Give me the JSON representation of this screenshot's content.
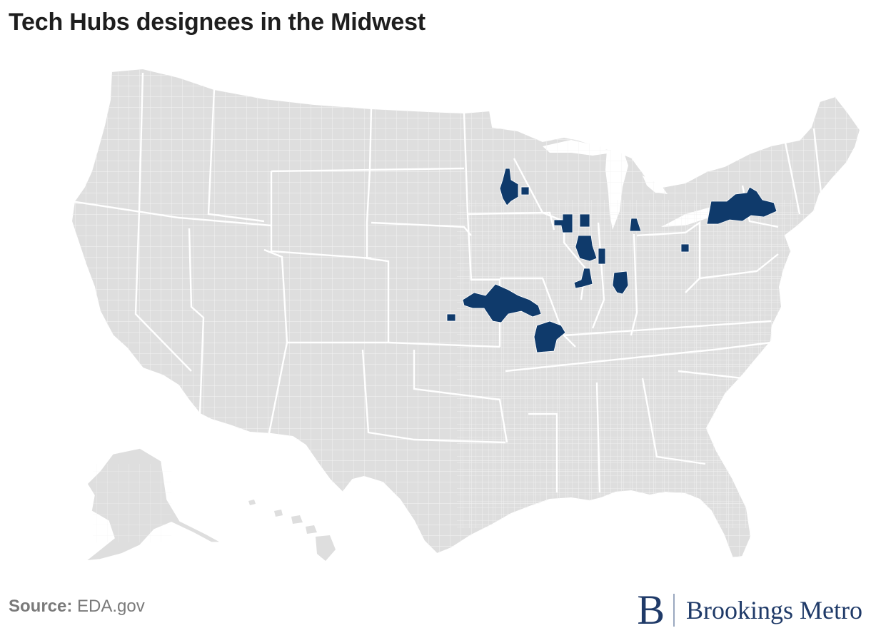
{
  "title": "Tech Hubs designees in the Midwest",
  "source": {
    "label": "Source:",
    "value": "EDA.gov"
  },
  "logo": {
    "mark": "B",
    "text": "Brookings Metro"
  },
  "colors": {
    "land": "#dedede",
    "state_border": "#ffffff",
    "county_line": "#f3f3f3",
    "highlight": "#0f3a6b"
  },
  "map": {
    "type": "choropleth",
    "region": "United States counties",
    "highlight_category": "Tech Hub designee"
  }
}
